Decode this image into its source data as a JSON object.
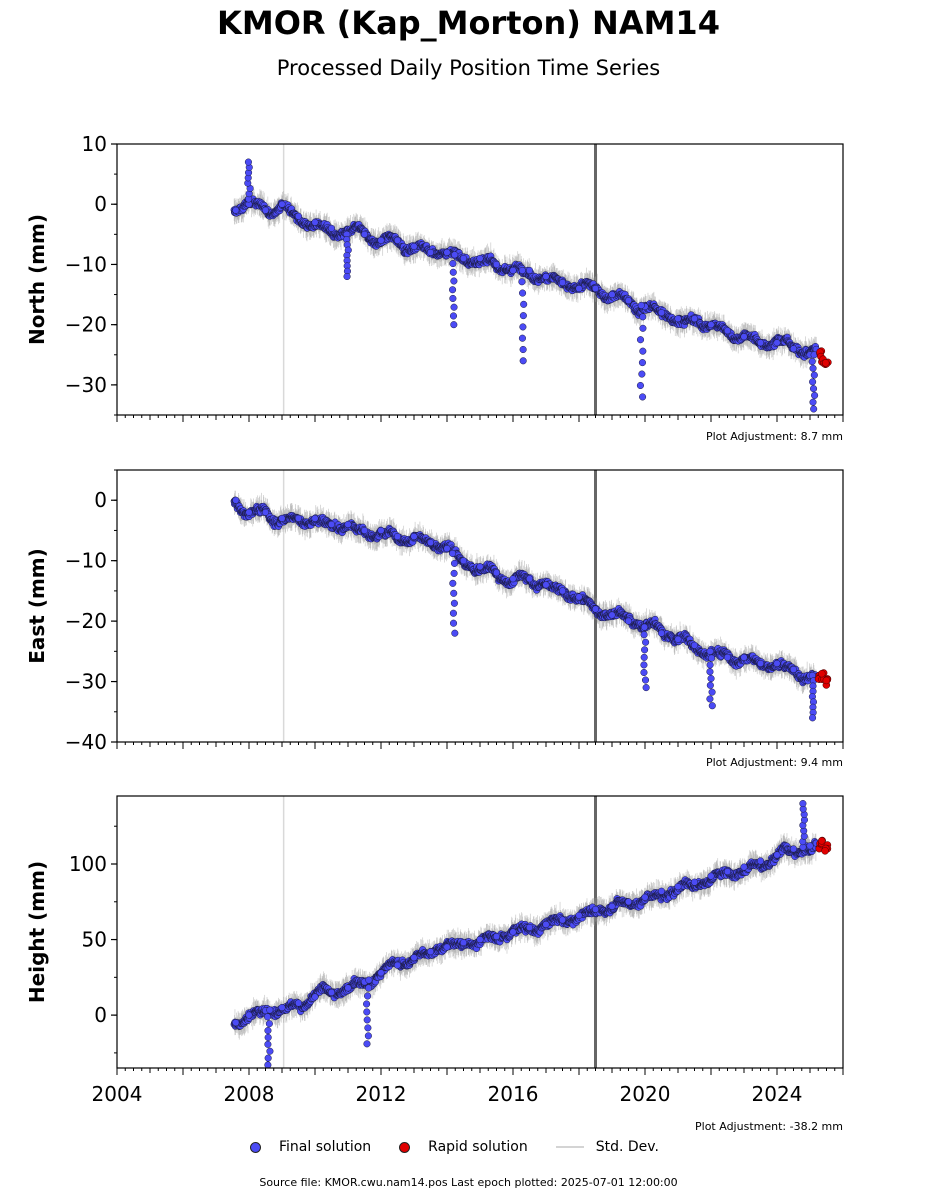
{
  "header": {
    "title": "KMOR (Kap_Morton) NAM14",
    "subtitle": "Processed Daily Position Time Series"
  },
  "legend": {
    "final_label": "Final solution",
    "rapid_label": "Rapid solution",
    "std_label": "Std. Dev."
  },
  "footer": {
    "source_text": "Source file: KMOR.cwu.nam14.pos  Last epoch plotted: 2025-07-01 12:00:00"
  },
  "colors": {
    "final": "#4b4bf5",
    "rapid": "#e00000",
    "std_dev": "#9a9a9a",
    "event_line": "#666666",
    "light_line": "#d9d9d9"
  },
  "chart_data": [
    {
      "type": "scatter",
      "ylabel": "North (mm)",
      "xlim": [
        2004,
        2026
      ],
      "ylim": [
        -35,
        10
      ],
      "yticks": [
        "10",
        "0",
        "−10",
        "−20",
        "−30"
      ],
      "yticks_values": [
        10,
        0,
        -10,
        -20,
        -30
      ],
      "adjustment": "Plot Adjustment: 8.7 mm",
      "event_lines": [
        2009.05,
        2018.5
      ],
      "final_series": {
        "name": "Final solution",
        "x": [
          2007.6,
          2008.0,
          2008.5,
          2009.0,
          2009.5,
          2010.0,
          2010.5,
          2011.0,
          2011.5,
          2012.0,
          2012.5,
          2013.0,
          2013.5,
          2014.0,
          2014.5,
          2015.0,
          2015.5,
          2016.0,
          2016.5,
          2017.0,
          2017.5,
          2018.0,
          2018.5,
          2019.0,
          2019.5,
          2020.0,
          2020.5,
          2021.0,
          2021.5,
          2022.0,
          2022.5,
          2023.0,
          2023.5,
          2024.0,
          2024.5,
          2025.0
        ],
        "y": [
          -1,
          0,
          -1,
          0,
          -2,
          -3,
          -4,
          -5,
          -5,
          -6,
          -6,
          -7,
          -8,
          -8,
          -9,
          -9,
          -10,
          -11,
          -11,
          -12,
          -13,
          -14,
          -14,
          -15,
          -16,
          -17,
          -18,
          -19,
          -19,
          -20,
          -21,
          -22,
          -23,
          -23,
          -24,
          -25
        ]
      },
      "rapid_series": {
        "name": "Rapid solution",
        "x": [
          2025.3,
          2025.4,
          2025.5
        ],
        "y": [
          -25,
          -26,
          -26
        ]
      },
      "notable_dips": [
        {
          "x": 2008.0,
          "y": 7
        },
        {
          "x": 2011.0,
          "y": -12
        },
        {
          "x": 2014.2,
          "y": -20
        },
        {
          "x": 2016.3,
          "y": -26
        },
        {
          "x": 2019.9,
          "y": -32
        },
        {
          "x": 2025.1,
          "y": -34
        }
      ]
    },
    {
      "type": "scatter",
      "ylabel": "East (mm)",
      "xlim": [
        2004,
        2026
      ],
      "ylim": [
        -40,
        5
      ],
      "yticks": [
        "0",
        "−10",
        "−20",
        "−30",
        "−40"
      ],
      "yticks_values": [
        0,
        -10,
        -20,
        -30,
        -40
      ],
      "adjustment": "Plot Adjustment: 9.4 mm",
      "event_lines": [
        2009.05,
        2018.5
      ],
      "final_series": {
        "name": "Final solution",
        "x": [
          2007.6,
          2008.0,
          2008.5,
          2009.0,
          2009.5,
          2010.0,
          2010.5,
          2011.0,
          2011.5,
          2012.0,
          2012.5,
          2013.0,
          2013.5,
          2014.0,
          2014.5,
          2015.0,
          2015.5,
          2016.0,
          2016.5,
          2017.0,
          2017.5,
          2018.0,
          2018.5,
          2019.0,
          2019.5,
          2020.0,
          2020.5,
          2021.0,
          2021.5,
          2022.0,
          2022.5,
          2023.0,
          2023.5,
          2024.0,
          2024.5,
          2025.0
        ],
        "y": [
          0,
          -2,
          -2,
          -3,
          -3,
          -3,
          -4,
          -4,
          -5,
          -5,
          -6,
          -6,
          -7,
          -8,
          -10,
          -11,
          -12,
          -13,
          -13,
          -14,
          -15,
          -16,
          -18,
          -19,
          -20,
          -21,
          -22,
          -23,
          -24,
          -25,
          -26,
          -26,
          -27,
          -27,
          -28,
          -29
        ]
      },
      "rapid_series": {
        "name": "Rapid solution",
        "x": [
          2025.3,
          2025.4,
          2025.5
        ],
        "y": [
          -29,
          -29,
          -30
        ]
      },
      "notable_dips": [
        {
          "x": 2014.2,
          "y": -22
        },
        {
          "x": 2020.0,
          "y": -31
        },
        {
          "x": 2022.0,
          "y": -34
        },
        {
          "x": 2025.1,
          "y": -36
        }
      ]
    },
    {
      "type": "scatter",
      "ylabel": "Height (mm)",
      "xlim": [
        2004,
        2026
      ],
      "ylim": [
        -35,
        145
      ],
      "yticks": [
        "100",
        "50",
        "0"
      ],
      "yticks_values": [
        100,
        50,
        0
      ],
      "xticks": [
        "2004",
        "2008",
        "2012",
        "2016",
        "2020",
        "2024"
      ],
      "xticks_values": [
        2004,
        2008,
        2012,
        2016,
        2020,
        2024
      ],
      "adjustment": "Plot Adjustment: -38.2 mm",
      "event_lines": [
        2009.05,
        2018.5
      ],
      "final_series": {
        "name": "Final solution",
        "x": [
          2007.6,
          2008.0,
          2008.5,
          2009.0,
          2009.5,
          2010.0,
          2010.5,
          2011.0,
          2011.5,
          2012.0,
          2012.5,
          2013.0,
          2013.5,
          2014.0,
          2014.5,
          2015.0,
          2015.5,
          2016.0,
          2016.5,
          2017.0,
          2017.5,
          2018.0,
          2018.5,
          2019.0,
          2019.5,
          2020.0,
          2020.5,
          2021.0,
          2021.5,
          2022.0,
          2022.5,
          2023.0,
          2023.5,
          2024.0,
          2024.5,
          2025.0
        ],
        "y": [
          -5,
          0,
          3,
          5,
          8,
          12,
          15,
          18,
          22,
          28,
          33,
          38,
          42,
          45,
          48,
          50,
          52,
          55,
          58,
          60,
          63,
          66,
          70,
          72,
          75,
          78,
          82,
          85,
          88,
          92,
          95,
          98,
          102,
          106,
          110,
          112
        ]
      },
      "rapid_series": {
        "name": "Rapid solution",
        "x": [
          2025.3,
          2025.4,
          2025.5
        ],
        "y": [
          112,
          115,
          110
        ]
      },
      "notable_dips": [
        {
          "x": 2008.6,
          "y": -33
        },
        {
          "x": 2011.6,
          "y": -19
        },
        {
          "x": 2024.8,
          "y": 140
        }
      ]
    }
  ]
}
